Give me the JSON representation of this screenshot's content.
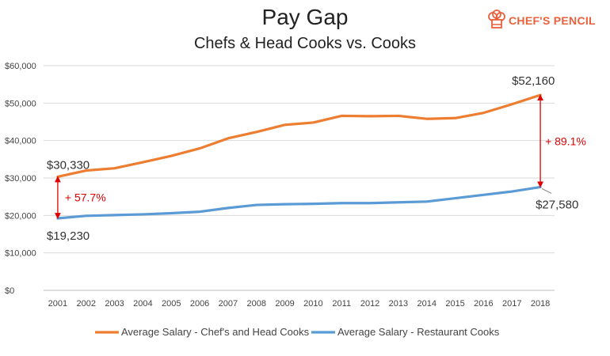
{
  "header": {
    "title": "Pay Gap",
    "subtitle": "Chefs & Head Cooks vs. Cooks",
    "logo_text": "CHEF'S PENCIL"
  },
  "chart_data": {
    "type": "line",
    "title": "Pay Gap",
    "subtitle": "Chefs & Head Cooks vs. Cooks",
    "x": [
      2001,
      2002,
      2003,
      2004,
      2005,
      2006,
      2007,
      2008,
      2009,
      2010,
      2011,
      2012,
      2013,
      2014,
      2015,
      2016,
      2017,
      2018
    ],
    "ylim": [
      0,
      60000
    ],
    "y_ticks": [
      "$0",
      "$10,000",
      "$20,000",
      "$30,000",
      "$40,000",
      "$50,000",
      "$60,000"
    ],
    "grid": true,
    "legend_position": "bottom",
    "series": [
      {
        "name": "Average Salary - Chef's and Head Cooks",
        "color": "#ED7D31",
        "values": [
          30330,
          32000,
          32600,
          34200,
          35900,
          37900,
          40600,
          42300,
          44200,
          44800,
          46600,
          46500,
          46600,
          45800,
          46000,
          47400,
          49700,
          52160
        ]
      },
      {
        "name": "Average Salary - Restaurant Cooks",
        "color": "#5B9BD5",
        "values": [
          19230,
          19900,
          20100,
          20300,
          20600,
          21000,
          22000,
          22800,
          23000,
          23100,
          23300,
          23300,
          23500,
          23700,
          24600,
          25500,
          26400,
          27580
        ]
      }
    ],
    "annotations": {
      "start_high": "$30,330",
      "start_low": "$19,230",
      "end_high": "$52,160",
      "end_low": "$27,580",
      "gap_start": "+ 57.7%",
      "gap_end": "+ 89.1%",
      "gap_color": "#E00000"
    }
  }
}
